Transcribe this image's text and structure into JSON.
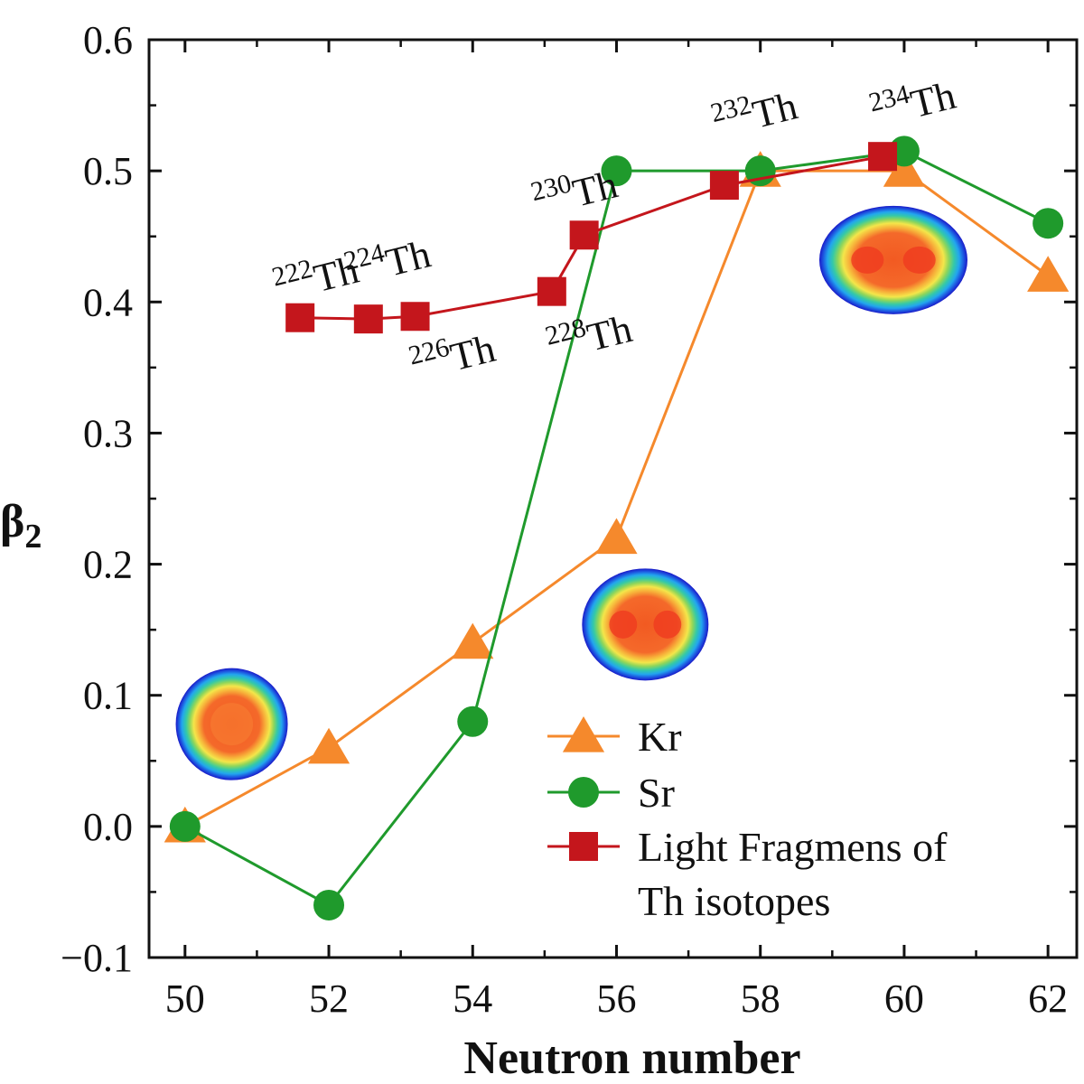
{
  "chart_data": {
    "type": "line",
    "title": "",
    "xlabel": "Neutron number",
    "ylabel": "β",
    "ylabel_subscript": "2",
    "xlim": [
      49.5,
      62.4
    ],
    "ylim": [
      -0.1,
      0.6
    ],
    "x_ticks": [
      "50",
      "52",
      "54",
      "56",
      "58",
      "60",
      "62"
    ],
    "y_ticks": [
      "−0.1",
      "0.0",
      "0.1",
      "0.2",
      "0.3",
      "0.4",
      "0.5",
      "0.6"
    ],
    "grid": false,
    "legend_position": "bottom-right",
    "series": [
      {
        "name": "Kr",
        "marker": "triangle",
        "color": "#f5892c",
        "x": [
          50,
          52,
          54,
          56,
          58,
          60,
          62
        ],
        "y": [
          0.0,
          0.06,
          0.14,
          0.22,
          0.5,
          0.5,
          0.42
        ]
      },
      {
        "name": "Sr",
        "marker": "circle",
        "color": "#1f9a2c",
        "x": [
          50,
          52,
          54,
          56,
          58,
          60,
          62
        ],
        "y": [
          0.0,
          -0.06,
          0.08,
          0.5,
          0.5,
          0.515,
          0.46
        ]
      },
      {
        "name": "Light Fragmens of Th isotopes",
        "name_lines": [
          "Light Fragmens of",
          "Th isotopes"
        ],
        "marker": "square",
        "color": "#c4161c",
        "x": [
          51.6,
          52.55,
          53.2,
          55.1,
          55.55,
          57.5,
          59.7
        ],
        "y": [
          0.388,
          0.387,
          0.389,
          0.408,
          0.451,
          0.489,
          0.511
        ]
      }
    ],
    "annotations": [
      {
        "mass": "222",
        "element": "Th",
        "x": 51.3,
        "y": 0.4,
        "angle": -14
      },
      {
        "mass": "224",
        "element": "Th",
        "x": 52.3,
        "y": 0.412,
        "angle": -14
      },
      {
        "mass": "226",
        "element": "Th",
        "x": 53.2,
        "y": 0.34,
        "angle": -14
      },
      {
        "mass": "228",
        "element": "Th",
        "x": 55.1,
        "y": 0.355,
        "angle": -14
      },
      {
        "mass": "230",
        "element": "Th",
        "x": 54.9,
        "y": 0.465,
        "angle": -14
      },
      {
        "mass": "232",
        "element": "Th",
        "x": 57.4,
        "y": 0.525,
        "angle": -14
      },
      {
        "mass": "234",
        "element": "Th",
        "x": 59.6,
        "y": 0.533,
        "angle": -14
      }
    ],
    "density_images": [
      {
        "shape": "spherical",
        "x": 50.65,
        "y": 0.078
      },
      {
        "shape": "prolate",
        "x": 56.4,
        "y": 0.154
      },
      {
        "shape": "elongated",
        "x": 59.85,
        "y": 0.432
      }
    ]
  }
}
